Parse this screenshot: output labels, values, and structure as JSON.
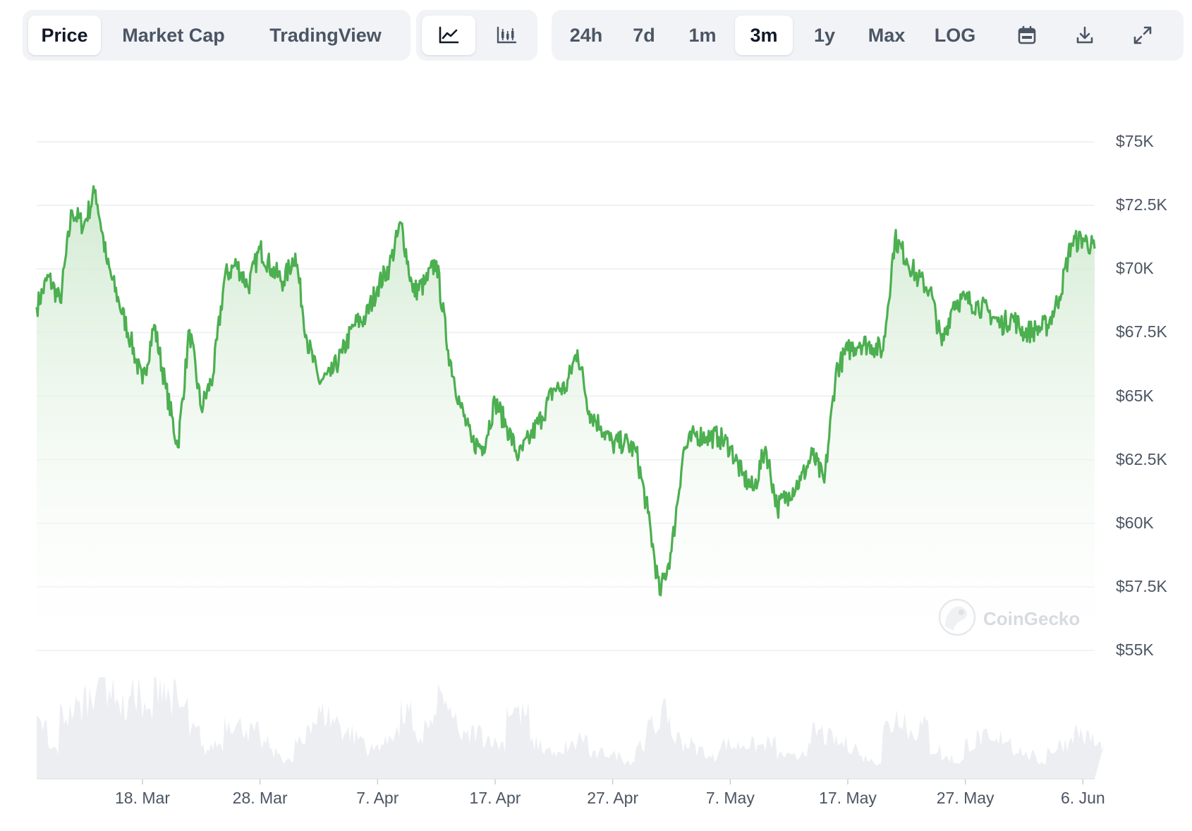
{
  "toolbar": {
    "metric_tabs": [
      "Price",
      "Market Cap",
      "TradingView"
    ],
    "active_metric": "Price",
    "chart_type_buttons": [
      "line-chart-icon",
      "candlestick-chart-icon"
    ],
    "active_chart_type": "line-chart-icon",
    "ranges": [
      "24h",
      "7d",
      "1m",
      "3m",
      "1y",
      "Max"
    ],
    "active_range": "3m",
    "log_label": "LOG",
    "tool_icons": [
      "calendar-icon",
      "download-icon",
      "expand-icon"
    ]
  },
  "watermark": {
    "text": "CoinGecko"
  },
  "colors": {
    "line": "#4caf50",
    "fill_top": "#cfe9cf",
    "volume": "#eceef2",
    "grid": "#eceef1",
    "toolbar_bg": "#f1f3f7"
  },
  "chart_data": {
    "type": "area",
    "title": "",
    "xlabel": "",
    "ylabel": "",
    "x_tick_labels": [
      "18. Mar",
      "28. Mar",
      "7. Apr",
      "17. Apr",
      "27. Apr",
      "7. May",
      "17. May",
      "27. May",
      "6. Jun"
    ],
    "y_tick_labels": [
      "$75K",
      "$72.5K",
      "$70K",
      "$67.5K",
      "$65K",
      "$62.5K",
      "$60K",
      "$57.5K",
      "$55K"
    ],
    "y_ticks": [
      75000,
      72500,
      70000,
      67500,
      65000,
      62500,
      60000,
      57500,
      55000
    ],
    "ylim": [
      55000,
      75000
    ],
    "x_range": [
      "2024-03-09",
      "2024-06-07"
    ],
    "grid": true,
    "legend": "none",
    "series": [
      {
        "x": [
          "2024-03-09",
          "2024-03-10",
          "2024-03-11",
          "2024-03-12",
          "2024-03-13",
          "2024-03-14",
          "2024-03-15",
          "2024-03-16",
          "2024-03-17",
          "2024-03-18",
          "2024-03-19",
          "2024-03-20",
          "2024-03-21",
          "2024-03-22",
          "2024-03-23",
          "2024-03-24",
          "2024-03-25",
          "2024-03-26",
          "2024-03-27",
          "2024-03-28",
          "2024-03-29",
          "2024-03-30",
          "2024-03-31",
          "2024-04-01",
          "2024-04-02",
          "2024-04-03",
          "2024-04-04",
          "2024-04-05",
          "2024-04-06",
          "2024-04-07",
          "2024-04-08",
          "2024-04-09",
          "2024-04-10",
          "2024-04-11",
          "2024-04-12",
          "2024-04-13",
          "2024-04-14",
          "2024-04-15",
          "2024-04-16",
          "2024-04-17",
          "2024-04-18",
          "2024-04-19",
          "2024-04-20",
          "2024-04-21",
          "2024-04-22",
          "2024-04-23",
          "2024-04-24",
          "2024-04-25",
          "2024-04-26",
          "2024-04-27",
          "2024-04-28",
          "2024-04-29",
          "2024-04-30",
          "2024-05-01",
          "2024-05-02",
          "2024-05-03",
          "2024-05-04",
          "2024-05-05",
          "2024-05-06",
          "2024-05-07",
          "2024-05-08",
          "2024-05-09",
          "2024-05-10",
          "2024-05-11",
          "2024-05-12",
          "2024-05-13",
          "2024-05-14",
          "2024-05-15",
          "2024-05-16",
          "2024-05-17",
          "2024-05-18",
          "2024-05-19",
          "2024-05-20",
          "2024-05-21",
          "2024-05-22",
          "2024-05-23",
          "2024-05-24",
          "2024-05-25",
          "2024-05-26",
          "2024-05-27",
          "2024-05-28",
          "2024-05-29",
          "2024-05-30",
          "2024-05-31",
          "2024-06-01",
          "2024-06-02",
          "2024-06-03",
          "2024-06-04",
          "2024-06-05",
          "2024-06-06",
          "2024-06-07"
        ],
        "y": [
          68500,
          69700,
          68700,
          72300,
          71700,
          73100,
          70200,
          68700,
          67200,
          65500,
          67800,
          65300,
          63000,
          67600,
          64500,
          65800,
          69700,
          70200,
          69300,
          70800,
          70000,
          69500,
          70600,
          67200,
          65600,
          65800,
          66700,
          67800,
          68100,
          69300,
          70100,
          71800,
          69100,
          69400,
          70300,
          66800,
          64700,
          63200,
          63000,
          64800,
          63800,
          62600,
          63400,
          64200,
          65300,
          65300,
          66800,
          64400,
          63800,
          63100,
          63200,
          62800,
          60400,
          57200,
          58900,
          62800,
          63500,
          63400,
          63400,
          63000,
          61900,
          61300,
          63000,
          60600,
          61200,
          61700,
          62700,
          61600,
          66000,
          66800,
          67100,
          67000,
          66800,
          71200,
          70400,
          69600,
          69200,
          67000,
          68700,
          68800,
          68600,
          68300,
          67800,
          68100,
          67500,
          67600,
          67800,
          68900,
          71000,
          71200,
          70800
        ],
        "volume_relative": [
          0.45,
          0.25,
          0.55,
          0.6,
          0.7,
          0.95,
          0.8,
          0.6,
          0.75,
          0.55,
          0.85,
          0.7,
          0.6,
          0.4,
          0.25,
          0.3,
          0.5,
          0.45,
          0.4,
          0.3,
          0.22,
          0.15,
          0.3,
          0.5,
          0.55,
          0.5,
          0.4,
          0.35,
          0.25,
          0.3,
          0.4,
          0.55,
          0.35,
          0.45,
          0.7,
          0.5,
          0.35,
          0.4,
          0.35,
          0.3,
          0.6,
          0.55,
          0.3,
          0.25,
          0.2,
          0.28,
          0.35,
          0.2,
          0.22,
          0.2,
          0.15,
          0.3,
          0.45,
          0.55,
          0.35,
          0.3,
          0.25,
          0.18,
          0.3,
          0.28,
          0.3,
          0.28,
          0.3,
          0.2,
          0.18,
          0.25,
          0.4,
          0.35,
          0.3,
          0.28,
          0.18,
          0.15,
          0.45,
          0.55,
          0.4,
          0.45,
          0.25,
          0.18,
          0.15,
          0.3,
          0.35,
          0.3,
          0.35,
          0.25,
          0.2,
          0.15,
          0.25,
          0.3,
          0.4,
          0.35,
          0.28
        ]
      }
    ]
  }
}
